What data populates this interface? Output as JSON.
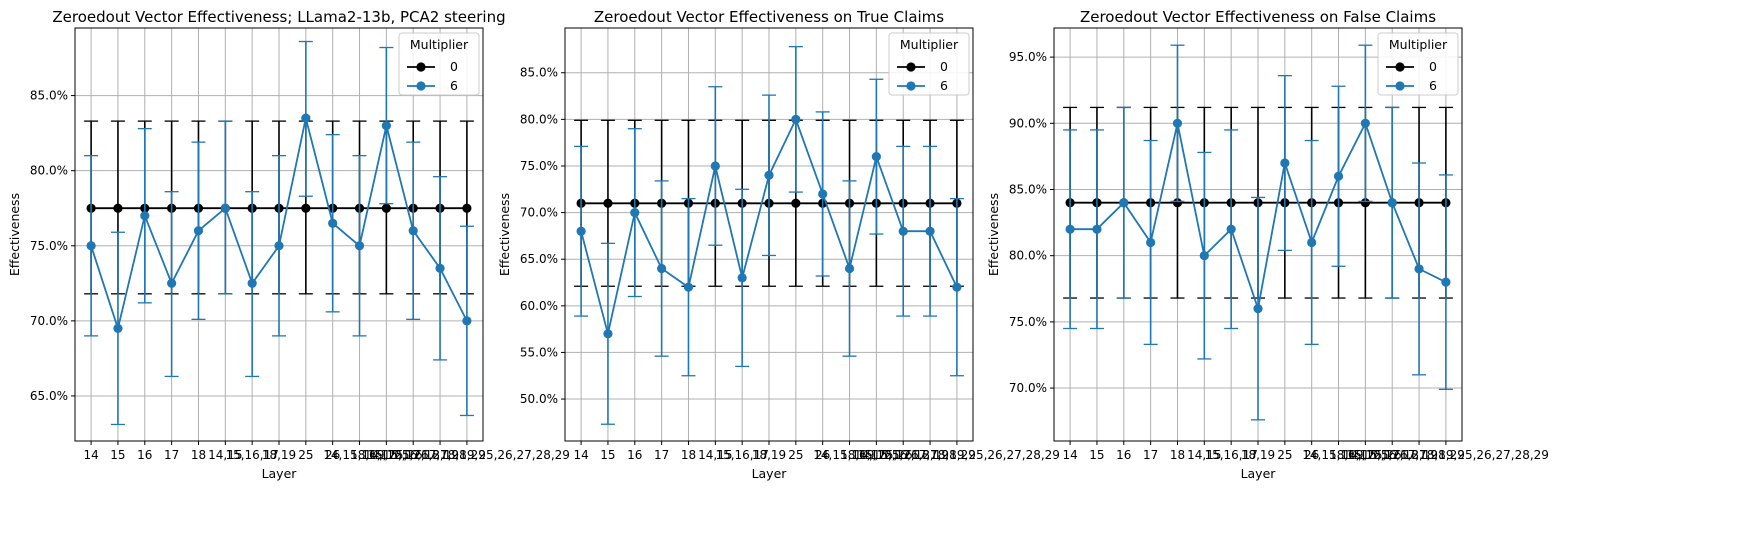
{
  "chart_data": [
    {
      "type": "line",
      "title": "Zeroedout Vector Effectiveness; LLama2-13b, PCA2 steering",
      "xlabel": "Layer",
      "ylabel": "Effectiveness",
      "ylim": [
        62.0,
        89.5
      ],
      "yticks": [
        "65.0%",
        "70.0%",
        "75.0%",
        "80.0%",
        "85.0%"
      ],
      "yticks_values": [
        65,
        70,
        75,
        80,
        85
      ],
      "categories": [
        "14",
        "15",
        "16",
        "17",
        "18",
        "14,15",
        "15,16,17",
        "18,19",
        "25",
        "26",
        "14,15,16,17",
        "18,19,25,26",
        "15,16,17,18,19",
        "25,26,27,28,29",
        "14,15,16,17,18,19,25,26,27,28,29"
      ],
      "grid": true,
      "legend": {
        "title": "Multiplier",
        "position": "top-right"
      },
      "series": [
        {
          "name": "0",
          "color": "#000000",
          "values": [
            77.5,
            77.5,
            77.5,
            77.5,
            77.5,
            77.5,
            77.5,
            77.5,
            77.5,
            77.5,
            77.5,
            77.5,
            77.5,
            77.5,
            77.5
          ],
          "err_low": [
            71.8,
            71.8,
            71.8,
            71.8,
            71.8,
            71.8,
            71.8,
            71.8,
            71.8,
            71.8,
            71.8,
            71.8,
            71.8,
            71.8,
            71.8
          ],
          "err_high": [
            83.3,
            83.3,
            83.3,
            83.3,
            83.3,
            83.3,
            83.3,
            83.3,
            83.3,
            83.3,
            83.3,
            83.3,
            83.3,
            83.3,
            83.3
          ]
        },
        {
          "name": "6",
          "color": "#1f77b4",
          "values": [
            75.0,
            69.5,
            77.0,
            72.5,
            76.0,
            77.5,
            72.5,
            75.0,
            83.5,
            76.5,
            75.0,
            83.0,
            76.0,
            73.5,
            70.0
          ],
          "err_low": [
            69.0,
            63.1,
            71.2,
            66.3,
            70.1,
            71.8,
            66.3,
            69.0,
            78.3,
            70.6,
            69.0,
            77.8,
            70.1,
            67.4,
            63.7
          ],
          "err_high": [
            81.0,
            75.9,
            82.8,
            78.6,
            81.9,
            83.3,
            78.6,
            81.0,
            88.6,
            82.4,
            81.0,
            88.2,
            81.9,
            79.6,
            76.3
          ]
        }
      ]
    },
    {
      "type": "line",
      "title": "Zeroedout Vector Effectiveness on True Claims",
      "xlabel": "Layer",
      "ylabel": "Effectiveness",
      "ylim": [
        45.5,
        89.8
      ],
      "yticks": [
        "50.0%",
        "55.0%",
        "60.0%",
        "65.0%",
        "70.0%",
        "75.0%",
        "80.0%",
        "85.0%"
      ],
      "yticks_values": [
        50,
        55,
        60,
        65,
        70,
        75,
        80,
        85
      ],
      "categories": [
        "14",
        "15",
        "16",
        "17",
        "18",
        "14,15",
        "15,16,17",
        "18,19",
        "25",
        "26",
        "14,15,16,17",
        "18,19,25,26",
        "15,16,17,18,19",
        "25,26,27,28,29",
        "14,15,16,17,18,19,25,26,27,28,29"
      ],
      "grid": true,
      "legend": {
        "title": "Multiplier",
        "position": "top-right"
      },
      "series": [
        {
          "name": "0",
          "color": "#000000",
          "values": [
            71,
            71,
            71,
            71,
            71,
            71,
            71,
            71,
            71,
            71,
            71,
            71,
            71,
            71,
            71
          ],
          "err_low": [
            62.1,
            62.1,
            62.1,
            62.1,
            62.1,
            62.1,
            62.1,
            62.1,
            62.1,
            62.1,
            62.1,
            62.1,
            62.1,
            62.1,
            62.1
          ],
          "err_high": [
            79.9,
            79.9,
            79.9,
            79.9,
            79.9,
            79.9,
            79.9,
            79.9,
            79.9,
            79.9,
            79.9,
            79.9,
            79.9,
            79.9,
            79.9
          ]
        },
        {
          "name": "6",
          "color": "#1f77b4",
          "values": [
            68,
            57,
            70,
            64,
            62,
            75,
            63,
            74,
            80,
            72,
            64,
            76,
            68,
            68,
            62
          ],
          "err_low": [
            58.9,
            47.3,
            61.0,
            54.6,
            52.5,
            66.5,
            53.5,
            65.4,
            72.2,
            63.2,
            54.6,
            67.7,
            58.9,
            58.9,
            52.5
          ],
          "err_high": [
            77.1,
            66.7,
            79.0,
            73.4,
            71.5,
            83.5,
            72.5,
            82.6,
            87.8,
            80.8,
            73.4,
            84.3,
            77.1,
            77.1,
            71.5
          ]
        }
      ]
    },
    {
      "type": "line",
      "title": "Zeroedout Vector Effectiveness on False Claims",
      "xlabel": "Layer",
      "ylabel": "Effectiveness",
      "ylim": [
        66.0,
        97.2
      ],
      "yticks": [
        "70.0%",
        "75.0%",
        "80.0%",
        "85.0%",
        "90.0%",
        "95.0%"
      ],
      "yticks_values": [
        70,
        75,
        80,
        85,
        90,
        95
      ],
      "categories": [
        "14",
        "15",
        "16",
        "17",
        "18",
        "14,15",
        "15,16,17",
        "18,19",
        "25",
        "26",
        "14,15,16,17",
        "18,19,25,26",
        "15,16,17,18,19",
        "25,26,27,28,29",
        "14,15,16,17,18,19,25,26,27,28,29"
      ],
      "grid": true,
      "legend": {
        "title": "Multiplier",
        "position": "top-right"
      },
      "series": [
        {
          "name": "0",
          "color": "#000000",
          "values": [
            84,
            84,
            84,
            84,
            84,
            84,
            84,
            84,
            84,
            84,
            84,
            84,
            84,
            84,
            84
          ],
          "err_low": [
            76.8,
            76.8,
            76.8,
            76.8,
            76.8,
            76.8,
            76.8,
            76.8,
            76.8,
            76.8,
            76.8,
            76.8,
            76.8,
            76.8,
            76.8
          ],
          "err_high": [
            91.2,
            91.2,
            91.2,
            91.2,
            91.2,
            91.2,
            91.2,
            91.2,
            91.2,
            91.2,
            91.2,
            91.2,
            91.2,
            91.2,
            91.2
          ]
        },
        {
          "name": "6",
          "color": "#1f77b4",
          "values": [
            82,
            82,
            84,
            81,
            90,
            80,
            82,
            76,
            87,
            81,
            86,
            90,
            84,
            79,
            78
          ],
          "err_low": [
            74.5,
            74.5,
            76.8,
            73.3,
            84.1,
            72.2,
            74.5,
            67.6,
            80.4,
            73.3,
            79.2,
            84.1,
            76.8,
            71.0,
            69.9
          ],
          "err_high": [
            89.5,
            89.5,
            91.2,
            88.7,
            95.9,
            87.8,
            89.5,
            84.4,
            93.6,
            88.7,
            92.8,
            95.9,
            91.2,
            87.0,
            86.1
          ]
        }
      ]
    }
  ]
}
